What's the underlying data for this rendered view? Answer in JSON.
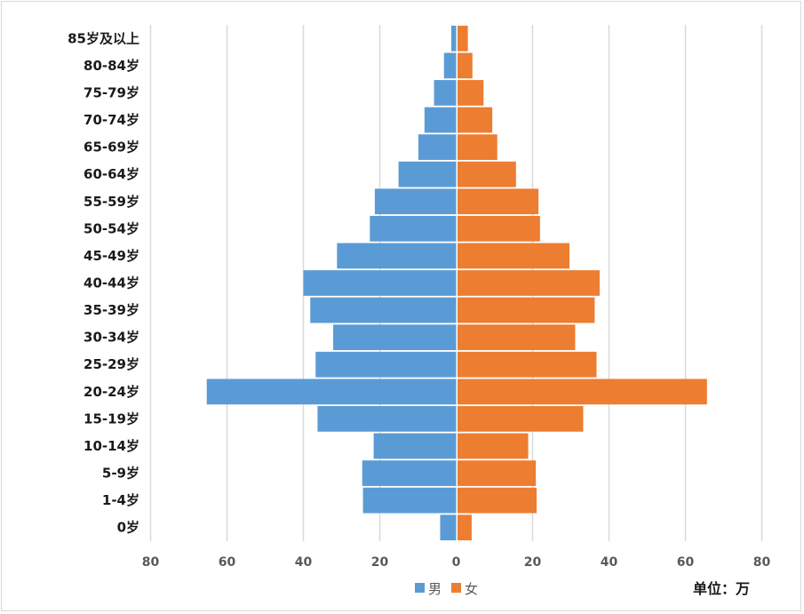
{
  "chart_data": {
    "type": "bar",
    "orientation": "horizontal-pyramid",
    "categories": [
      "85岁及以上",
      "80-84岁",
      "75-79岁",
      "70-74岁",
      "65-69岁",
      "60-64岁",
      "55-59岁",
      "50-54岁",
      "45-49岁",
      "40-44岁",
      "35-39岁",
      "30-34岁",
      "25-29岁",
      "20-24岁",
      "15-19岁",
      "10-14岁",
      "5-9岁",
      "1-4岁",
      "0岁"
    ],
    "series": [
      {
        "name": "男",
        "color": "#5b9bd5",
        "values": [
          1.3,
          3.2,
          5.8,
          8.3,
          9.9,
          15.1,
          21.3,
          22.6,
          31.2,
          40.0,
          38.2,
          32.2,
          36.8,
          65.3,
          36.3,
          21.6,
          24.6,
          24.4,
          4.2
        ]
      },
      {
        "name": "女",
        "color": "#ed7d31",
        "values": [
          2.7,
          3.9,
          6.8,
          9.1,
          10.4,
          15.3,
          21.2,
          21.6,
          29.3,
          37.2,
          35.9,
          30.8,
          36.4,
          65.3,
          32.9,
          18.5,
          20.5,
          20.7,
          3.7
        ]
      }
    ],
    "xaxis_ticks": [
      "80",
      "60",
      "40",
      "20",
      "0",
      "20",
      "40",
      "60",
      "80"
    ],
    "xlim": [
      -80,
      80
    ],
    "grid": true,
    "legend_position": "bottom",
    "unit_label": "单位：万"
  }
}
